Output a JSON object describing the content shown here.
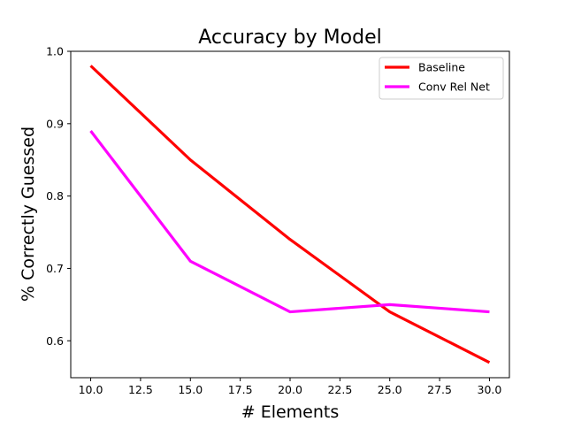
{
  "chart_data": {
    "type": "line",
    "title": "Accuracy by Model",
    "xlabel": "# Elements",
    "ylabel": "% Correctly Guessed",
    "x": [
      10,
      15,
      20,
      25,
      30
    ],
    "xlim": [
      9.0,
      31.0
    ],
    "ylim": [
      0.549,
      1.0
    ],
    "xticks": [
      10,
      12.5,
      15,
      17.5,
      20,
      22.5,
      25,
      27.5,
      30
    ],
    "xtick_labels": [
      "10.0",
      "12.5",
      "15.0",
      "17.5",
      "20.0",
      "22.5",
      "25.0",
      "27.5",
      "30.0"
    ],
    "yticks": [
      0.6,
      0.7,
      0.8,
      0.9,
      1.0
    ],
    "ytick_labels": [
      "0.6",
      "0.7",
      "0.8",
      "0.9",
      "1.0"
    ],
    "grid": false,
    "legend_position": "top-right",
    "series": [
      {
        "name": "Baseline",
        "color": "#ff0000",
        "values": [
          0.98,
          0.85,
          0.74,
          0.64,
          0.57
        ]
      },
      {
        "name": "Conv Rel Net",
        "color": "#ff00ff",
        "values": [
          0.89,
          0.71,
          0.64,
          0.65,
          0.64
        ]
      }
    ]
  }
}
